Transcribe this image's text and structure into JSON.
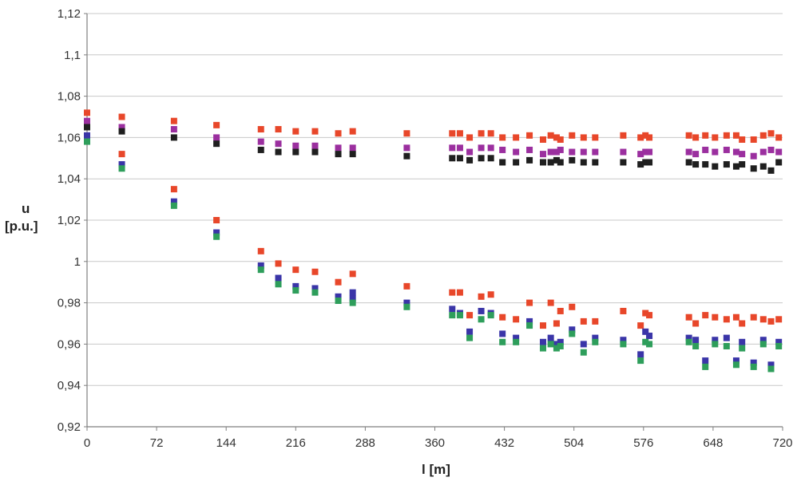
{
  "chart_data": {
    "type": "scatter",
    "title": "",
    "xlabel": "l [m]",
    "ylabel": [
      "u",
      "[p.u.]"
    ],
    "xlim": [
      0,
      720
    ],
    "ylim": [
      0.92,
      1.12
    ],
    "xticks": [
      0,
      72,
      144,
      216,
      288,
      360,
      432,
      504,
      576,
      648,
      720
    ],
    "xtick_labels": [
      "0",
      "72",
      "144",
      "216",
      "288",
      "360",
      "432",
      "504",
      "576",
      "648",
      "720"
    ],
    "yticks": [
      0.92,
      0.94,
      0.96,
      0.98,
      1.0,
      1.02,
      1.04,
      1.06,
      1.08,
      1.1,
      1.12
    ],
    "ytick_labels": [
      "0,92",
      "0,94",
      "0,96",
      "0,98",
      "1",
      "1,02",
      "1,04",
      "1,06",
      "1,08",
      "1,1",
      "1,12"
    ],
    "grid": "horizontal",
    "legend": "none",
    "series": [
      {
        "color": "#e8472a",
        "points": [
          [
            0,
            1.072
          ],
          [
            36,
            1.07
          ],
          [
            36,
            1.052
          ],
          [
            90,
            1.068
          ],
          [
            90,
            1.035
          ],
          [
            134,
            1.066
          ],
          [
            134,
            1.02
          ],
          [
            180,
            1.064
          ],
          [
            180,
            1.005
          ],
          [
            198,
            1.064
          ],
          [
            198,
            0.999
          ],
          [
            216,
            1.063
          ],
          [
            216,
            0.996
          ],
          [
            236,
            1.063
          ],
          [
            236,
            0.995
          ],
          [
            260,
            1.062
          ],
          [
            260,
            0.99
          ],
          [
            275,
            1.063
          ],
          [
            275,
            0.994
          ],
          [
            331,
            1.062
          ],
          [
            331,
            0.988
          ],
          [
            378,
            1.062
          ],
          [
            378,
            0.985
          ],
          [
            386,
            1.062
          ],
          [
            386,
            0.985
          ],
          [
            396,
            1.06
          ],
          [
            396,
            0.974
          ],
          [
            408,
            1.062
          ],
          [
            408,
            0.983
          ],
          [
            418,
            1.062
          ],
          [
            418,
            0.984
          ],
          [
            430,
            1.06
          ],
          [
            430,
            0.973
          ],
          [
            444,
            1.06
          ],
          [
            444,
            0.972
          ],
          [
            458,
            1.061
          ],
          [
            458,
            0.98
          ],
          [
            472,
            1.059
          ],
          [
            472,
            0.969
          ],
          [
            480,
            1.061
          ],
          [
            480,
            0.98
          ],
          [
            486,
            1.06
          ],
          [
            486,
            0.97
          ],
          [
            490,
            1.059
          ],
          [
            490,
            0.976
          ],
          [
            502,
            1.061
          ],
          [
            502,
            0.978
          ],
          [
            514,
            1.06
          ],
          [
            514,
            0.971
          ],
          [
            526,
            1.06
          ],
          [
            526,
            0.971
          ],
          [
            555,
            1.061
          ],
          [
            555,
            0.976
          ],
          [
            573,
            1.06
          ],
          [
            573,
            0.969
          ],
          [
            578,
            1.061
          ],
          [
            578,
            0.975
          ],
          [
            582,
            1.06
          ],
          [
            582,
            0.974
          ],
          [
            623,
            1.061
          ],
          [
            623,
            0.973
          ],
          [
            630,
            1.06
          ],
          [
            630,
            0.97
          ],
          [
            640,
            1.061
          ],
          [
            640,
            0.974
          ],
          [
            650,
            1.06
          ],
          [
            650,
            0.973
          ],
          [
            662,
            1.061
          ],
          [
            662,
            0.972
          ],
          [
            672,
            1.061
          ],
          [
            672,
            0.973
          ],
          [
            678,
            1.059
          ],
          [
            678,
            0.97
          ],
          [
            690,
            1.059
          ],
          [
            690,
            0.973
          ],
          [
            700,
            1.061
          ],
          [
            700,
            0.972
          ],
          [
            708,
            1.062
          ],
          [
            708,
            0.971
          ],
          [
            716,
            1.06
          ],
          [
            716,
            0.972
          ]
        ]
      },
      {
        "color": "#9b2f9f",
        "points": [
          [
            0,
            1.068
          ],
          [
            36,
            1.065
          ],
          [
            90,
            1.064
          ],
          [
            134,
            1.06
          ],
          [
            180,
            1.058
          ],
          [
            198,
            1.057
          ],
          [
            216,
            1.056
          ],
          [
            236,
            1.056
          ],
          [
            260,
            1.055
          ],
          [
            275,
            1.055
          ],
          [
            331,
            1.055
          ],
          [
            378,
            1.055
          ],
          [
            386,
            1.055
          ],
          [
            396,
            1.053
          ],
          [
            408,
            1.055
          ],
          [
            418,
            1.055
          ],
          [
            430,
            1.054
          ],
          [
            444,
            1.053
          ],
          [
            458,
            1.054
          ],
          [
            472,
            1.052
          ],
          [
            480,
            1.053
          ],
          [
            486,
            1.053
          ],
          [
            490,
            1.054
          ],
          [
            502,
            1.053
          ],
          [
            514,
            1.053
          ],
          [
            526,
            1.053
          ],
          [
            555,
            1.053
          ],
          [
            573,
            1.052
          ],
          [
            578,
            1.053
          ],
          [
            582,
            1.053
          ],
          [
            623,
            1.053
          ],
          [
            630,
            1.052
          ],
          [
            640,
            1.054
          ],
          [
            650,
            1.053
          ],
          [
            662,
            1.054
          ],
          [
            672,
            1.053
          ],
          [
            678,
            1.052
          ],
          [
            690,
            1.051
          ],
          [
            700,
            1.053
          ],
          [
            708,
            1.054
          ],
          [
            716,
            1.053
          ]
        ]
      },
      {
        "color": "#1f1f1f",
        "points": [
          [
            0,
            1.065
          ],
          [
            36,
            1.063
          ],
          [
            90,
            1.06
          ],
          [
            134,
            1.057
          ],
          [
            180,
            1.054
          ],
          [
            198,
            1.053
          ],
          [
            216,
            1.053
          ],
          [
            236,
            1.053
          ],
          [
            260,
            1.052
          ],
          [
            275,
            1.052
          ],
          [
            331,
            1.051
          ],
          [
            378,
            1.05
          ],
          [
            386,
            1.05
          ],
          [
            396,
            1.049
          ],
          [
            408,
            1.05
          ],
          [
            418,
            1.05
          ],
          [
            430,
            1.048
          ],
          [
            444,
            1.048
          ],
          [
            458,
            1.049
          ],
          [
            472,
            1.048
          ],
          [
            480,
            1.048
          ],
          [
            486,
            1.049
          ],
          [
            490,
            1.048
          ],
          [
            502,
            1.049
          ],
          [
            514,
            1.048
          ],
          [
            526,
            1.048
          ],
          [
            555,
            1.048
          ],
          [
            573,
            1.047
          ],
          [
            578,
            1.048
          ],
          [
            582,
            1.048
          ],
          [
            623,
            1.048
          ],
          [
            630,
            1.047
          ],
          [
            640,
            1.047
          ],
          [
            650,
            1.046
          ],
          [
            662,
            1.047
          ],
          [
            672,
            1.046
          ],
          [
            678,
            1.047
          ],
          [
            690,
            1.045
          ],
          [
            700,
            1.046
          ],
          [
            708,
            1.044
          ],
          [
            716,
            1.048
          ]
        ]
      },
      {
        "color": "#3a35a8",
        "points": [
          [
            0,
            1.061
          ],
          [
            36,
            1.047
          ],
          [
            90,
            1.029
          ],
          [
            134,
            1.014
          ],
          [
            180,
            0.998
          ],
          [
            198,
            0.992
          ],
          [
            216,
            0.988
          ],
          [
            236,
            0.987
          ],
          [
            260,
            0.983
          ],
          [
            275,
            0.985
          ],
          [
            275,
            0.982
          ],
          [
            331,
            0.98
          ],
          [
            378,
            0.977
          ],
          [
            386,
            0.975
          ],
          [
            396,
            0.966
          ],
          [
            408,
            0.976
          ],
          [
            418,
            0.975
          ],
          [
            430,
            0.965
          ],
          [
            444,
            0.963
          ],
          [
            458,
            0.971
          ],
          [
            472,
            0.961
          ],
          [
            480,
            0.963
          ],
          [
            486,
            0.96
          ],
          [
            490,
            0.961
          ],
          [
            502,
            0.967
          ],
          [
            514,
            0.96
          ],
          [
            526,
            0.963
          ],
          [
            555,
            0.962
          ],
          [
            573,
            0.955
          ],
          [
            578,
            0.966
          ],
          [
            582,
            0.964
          ],
          [
            623,
            0.963
          ],
          [
            630,
            0.962
          ],
          [
            640,
            0.952
          ],
          [
            650,
            0.962
          ],
          [
            662,
            0.963
          ],
          [
            672,
            0.952
          ],
          [
            678,
            0.961
          ],
          [
            690,
            0.951
          ],
          [
            700,
            0.962
          ],
          [
            708,
            0.95
          ],
          [
            716,
            0.961
          ]
        ]
      },
      {
        "color": "#2e9e5b",
        "points": [
          [
            0,
            1.058
          ],
          [
            36,
            1.045
          ],
          [
            90,
            1.027
          ],
          [
            134,
            1.012
          ],
          [
            180,
            0.996
          ],
          [
            198,
            0.989
          ],
          [
            216,
            0.986
          ],
          [
            236,
            0.985
          ],
          [
            260,
            0.981
          ],
          [
            275,
            0.98
          ],
          [
            331,
            0.978
          ],
          [
            378,
            0.974
          ],
          [
            386,
            0.974
          ],
          [
            396,
            0.963
          ],
          [
            408,
            0.972
          ],
          [
            418,
            0.974
          ],
          [
            430,
            0.961
          ],
          [
            444,
            0.961
          ],
          [
            458,
            0.969
          ],
          [
            472,
            0.958
          ],
          [
            480,
            0.96
          ],
          [
            486,
            0.958
          ],
          [
            490,
            0.959
          ],
          [
            502,
            0.965
          ],
          [
            514,
            0.956
          ],
          [
            526,
            0.961
          ],
          [
            555,
            0.96
          ],
          [
            573,
            0.952
          ],
          [
            578,
            0.961
          ],
          [
            582,
            0.96
          ],
          [
            623,
            0.961
          ],
          [
            630,
            0.959
          ],
          [
            640,
            0.949
          ],
          [
            650,
            0.96
          ],
          [
            662,
            0.959
          ],
          [
            672,
            0.95
          ],
          [
            678,
            0.958
          ],
          [
            690,
            0.949
          ],
          [
            700,
            0.96
          ],
          [
            708,
            0.948
          ],
          [
            716,
            0.959
          ]
        ]
      }
    ]
  }
}
